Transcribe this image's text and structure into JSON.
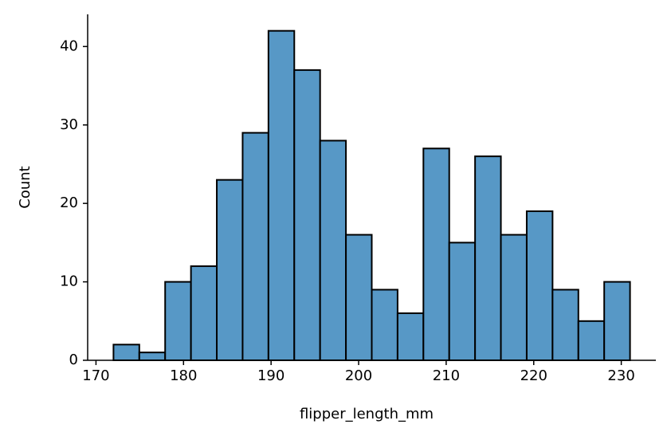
{
  "chart_data": {
    "type": "histogram",
    "xlabel": "flipper_length_mm",
    "ylabel": "Count",
    "bins": [
      172,
      174.95,
      177.9,
      180.85,
      183.8,
      186.75,
      189.7,
      192.65,
      195.6,
      198.55,
      201.5,
      204.45,
      207.4,
      210.35,
      213.3,
      216.25,
      219.2,
      222.15,
      225.1,
      228.05,
      231
    ],
    "counts": [
      2,
      1,
      10,
      12,
      23,
      29,
      42,
      37,
      28,
      16,
      9,
      6,
      27,
      15,
      26,
      16,
      19,
      9,
      5,
      10
    ],
    "color": "#5798c6",
    "edgecolor": "#000000",
    "xlim": [
      169.05,
      233.95
    ],
    "xticks": [
      170,
      180,
      190,
      200,
      210,
      220,
      230
    ],
    "ylim": [
      0,
      44.1
    ],
    "yticks": [
      0,
      10,
      20,
      30,
      40
    ],
    "grid": false
  }
}
